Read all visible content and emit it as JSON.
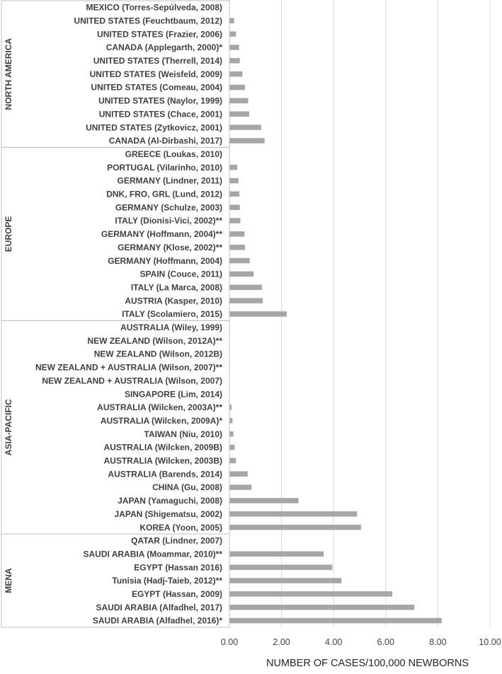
{
  "chart_data": {
    "type": "bar",
    "orientation": "horizontal",
    "xlabel": "NUMBER OF CASES/100,000 NEWBORNS",
    "xlim": [
      0,
      10
    ],
    "xticks": [
      "0.00",
      "2.00",
      "4.00",
      "6.00",
      "8.00",
      "10.00"
    ],
    "grid": true,
    "bar_color": "#a6a6a6",
    "grid_color": "#d9d9d9",
    "groups": [
      {
        "name": "NORTH AMERICA",
        "categories": [
          "MEXICO (Torres-Sepúlveda, 2008)",
          "UNITED STATES (Feuchtbaum, 2012)",
          "UNITED STATES (Frazier, 2006)",
          "CANADA (Applegarth, 2000)*",
          "UNITED STATES (Therrell, 2014)",
          "UNITED STATES (Weisfeld, 2009)",
          "UNITED STATES (Comeau, 2004)",
          "UNITED STATES (Naylor, 1999)",
          "UNITED STATES (Chace, 2001)",
          "UNITED STATES (Zytkovicz, 2001)",
          "CANADA (Al-Dirbashi, 2017)"
        ],
        "values": [
          0,
          0.18,
          0.25,
          0.37,
          0.4,
          0.5,
          0.6,
          0.72,
          0.76,
          1.22,
          1.35
        ]
      },
      {
        "name": "EUROPE",
        "categories": [
          "GREECE (Loukas, 2010)",
          "PORTUGAL (Vilarinho, 2010)",
          "GERMANY (Lindner, 2011)",
          "DNK, FRO, GRL (Lund, 2012)",
          "GERMANY (Schulze, 2003)",
          "ITALY (Dionisi-Vici, 2002)**",
          "GERMANY (Hoffmann, 2004)**",
          "GERMANY (Klose, 2002)**",
          "GERMANY (Hoffmann, 2004)",
          "SPAIN (Couce, 2011)",
          "ITALY (La Marca, 2008)",
          "AUSTRIA (Kasper, 2010)",
          "ITALY (Scolamiero, 2015)"
        ],
        "values": [
          0,
          0.3,
          0.35,
          0.38,
          0.4,
          0.42,
          0.58,
          0.6,
          0.78,
          0.93,
          1.25,
          1.28,
          2.2
        ]
      },
      {
        "name": "ASIA-PACIFIC",
        "categories": [
          "AUSTRALIA (Wiley, 1999)",
          "NEW ZEALAND (Wilson, 2012A)**",
          "NEW ZEALAND (Wilson, 2012B)",
          "NEW ZEALAND + AUSTRALIA (Wilson, 2007)**",
          "NEW ZEALAND + AUSTRALIA (Wilson, 2007)",
          "SINGAPORE (Lim, 2014)",
          "AUSTRALIA (Wilcken, 2003A)**",
          "AUSTRALIA (Wilcken, 2009A)*",
          "TAIWAN (Niu, 2010)",
          "AUSTRALIA (Wilcken, 2009B)",
          "AUSTRALIA (Wilcken, 2003B)",
          "AUSTRALIA (Barends, 2014)",
          "CHINA (Gu, 2008)",
          "JAPAN (Yamaguchi, 2008)",
          "JAPAN (Shigematsu, 2002)",
          "KOREA (Yoon, 2005)"
        ],
        "values": [
          0,
          0,
          0,
          0,
          0,
          0,
          0.08,
          0.12,
          0.15,
          0.2,
          0.25,
          0.7,
          0.85,
          2.65,
          4.9,
          5.05
        ]
      },
      {
        "name": "MENA",
        "categories": [
          "QATAR (Lindner, 2007)",
          "SAUDI ARABIA (Moammar, 2010)**",
          "EGYPT (Hassan 2016)",
          "Tunisia (Hadj-Taieb, 2012)**",
          "EGYPT (Hassan, 2009)",
          "SAUDI ARABIA (Alfadhel, 2017)",
          "SAUDI ARABIA (Alfadhel, 2016)*"
        ],
        "values": [
          0,
          3.62,
          3.95,
          4.3,
          6.25,
          7.1,
          8.15
        ]
      }
    ]
  }
}
